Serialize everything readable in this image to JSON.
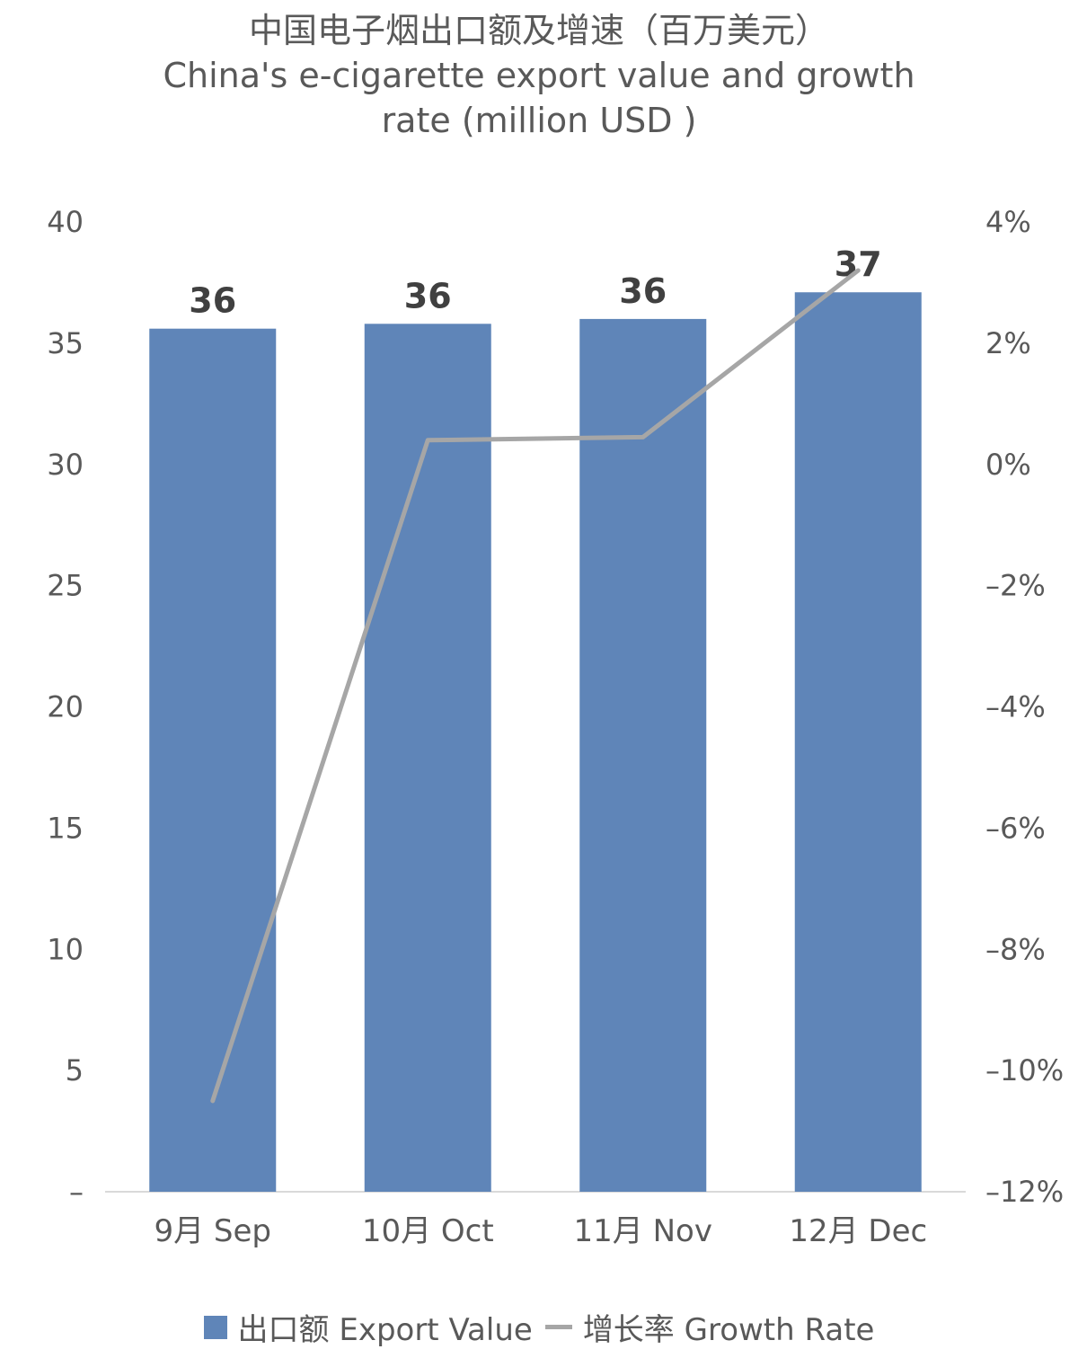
{
  "title_cn": "中国电子烟出口额及增速（百万美元）",
  "title_en_line1": "China's e-cigarette export value and growth",
  "title_en_line2": "rate (million USD )",
  "colors": {
    "bar": "#5F85B8",
    "line": "#A6A6A6",
    "axis": "#D9D9D9"
  },
  "legend": {
    "bar_label": "出口额 Export Value",
    "line_label": "增长率 Growth Rate"
  },
  "chart_data": {
    "type": "bar",
    "categories": [
      "9月 Sep",
      "10月 Oct",
      "11月 Nov",
      "12月 Dec"
    ],
    "series": [
      {
        "name": "出口额 Export Value",
        "type": "bar",
        "axis": "left",
        "values": [
          35.6,
          35.8,
          36.0,
          37.1
        ],
        "labels": [
          "36",
          "36",
          "36",
          "37"
        ]
      },
      {
        "name": "增长率 Growth Rate",
        "type": "line",
        "axis": "right",
        "values": [
          -10.5,
          0.4,
          0.45,
          3.2
        ]
      }
    ],
    "y_left": {
      "min": 0,
      "max": 40,
      "ticks": [
        "–",
        "5",
        "10",
        "15",
        "20",
        "25",
        "30",
        "35",
        "40"
      ]
    },
    "y_right": {
      "min": -12,
      "max": 4,
      "ticks": [
        "–12%",
        "–10%",
        "–8%",
        "–6%",
        "–4%",
        "–2%",
        "0%",
        "2%",
        "4%"
      ]
    },
    "grid": false,
    "legend_position": "bottom"
  }
}
